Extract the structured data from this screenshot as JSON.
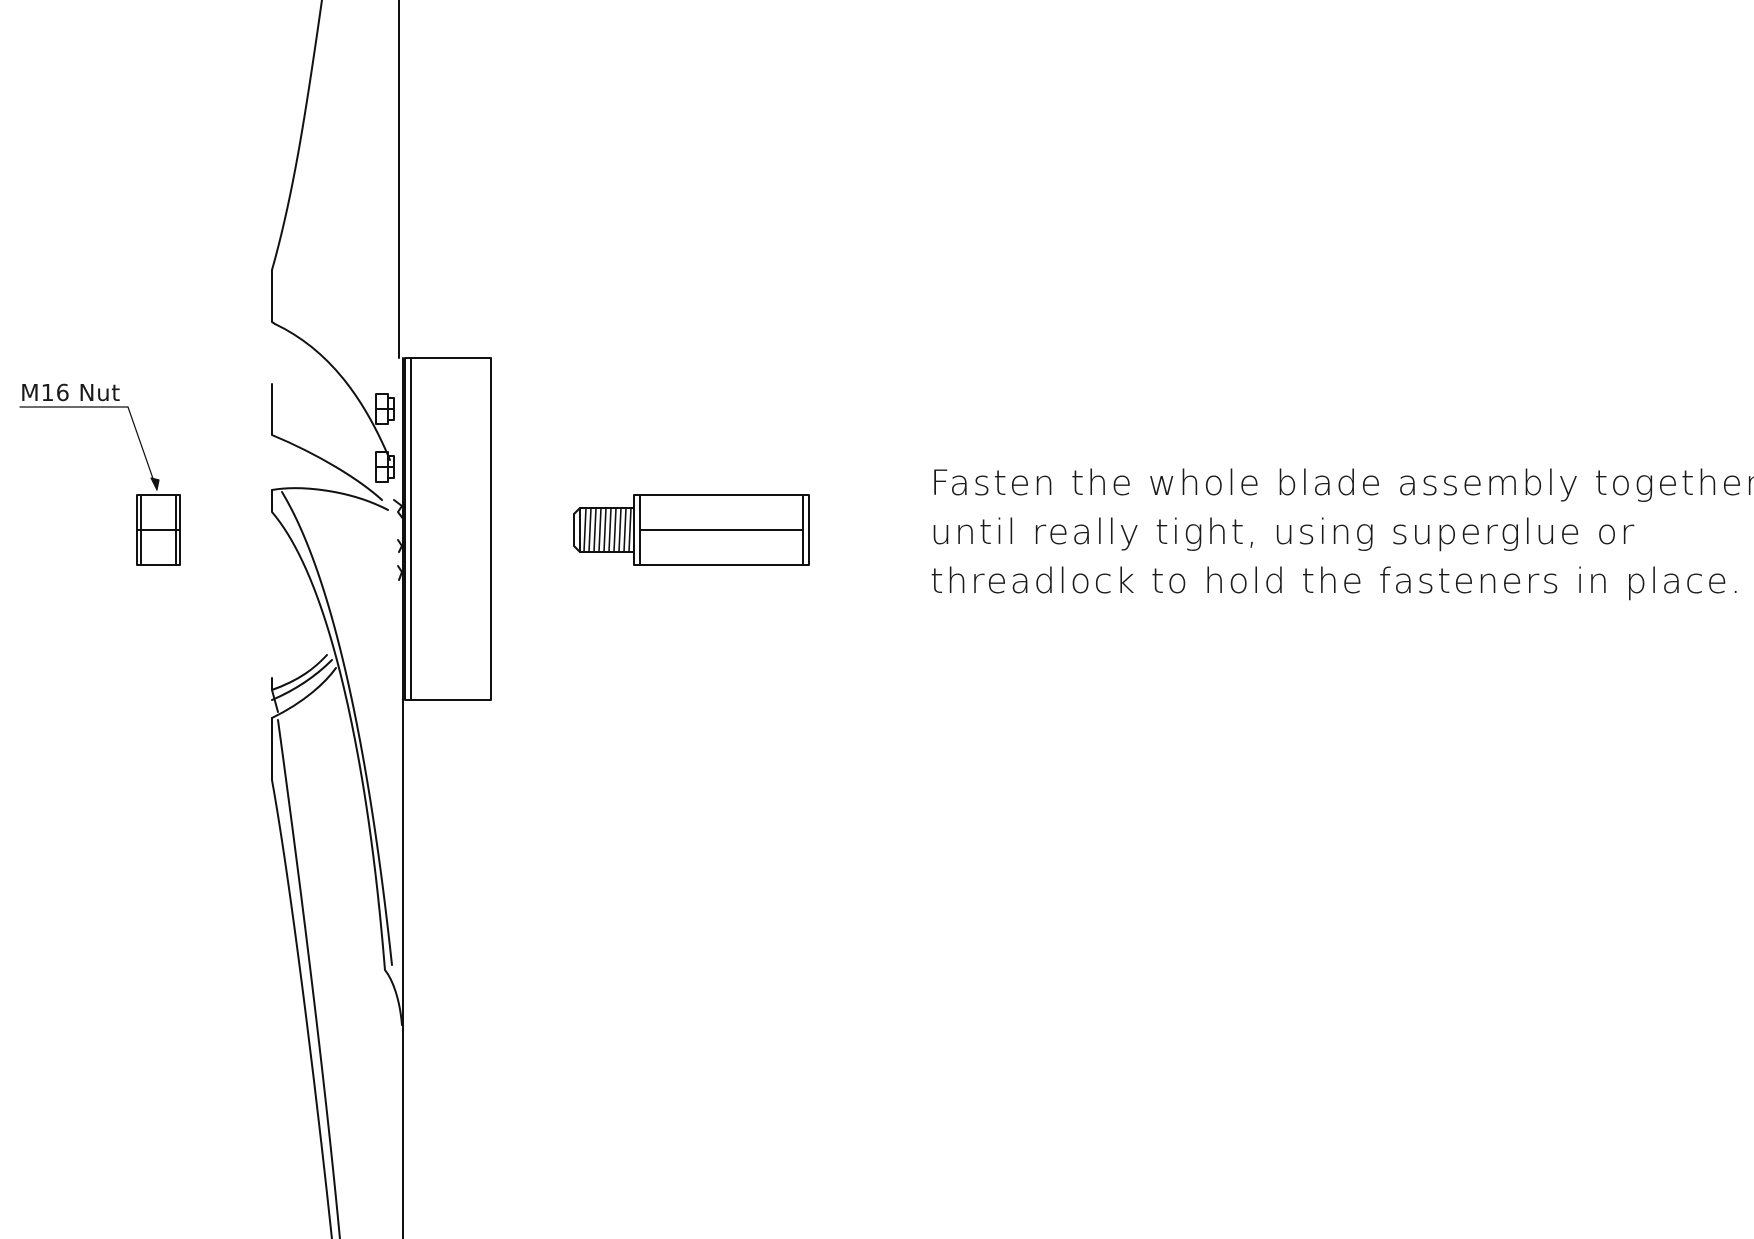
{
  "callout": {
    "part_label": "M16 Nut"
  },
  "instructions": {
    "lines": [
      "Fasten the whole blade assembly together,",
      "until really tight, using superglue or",
      "threadlock to hold the fasteners in place."
    ]
  },
  "colors": {
    "background": "#ffffff",
    "line": "#111111"
  },
  "icons": {
    "blade": "blade-drawing",
    "hub": "hub-block-drawing",
    "bolt": "threaded-standoff-drawing",
    "nut": "hex-nut-drawing"
  }
}
